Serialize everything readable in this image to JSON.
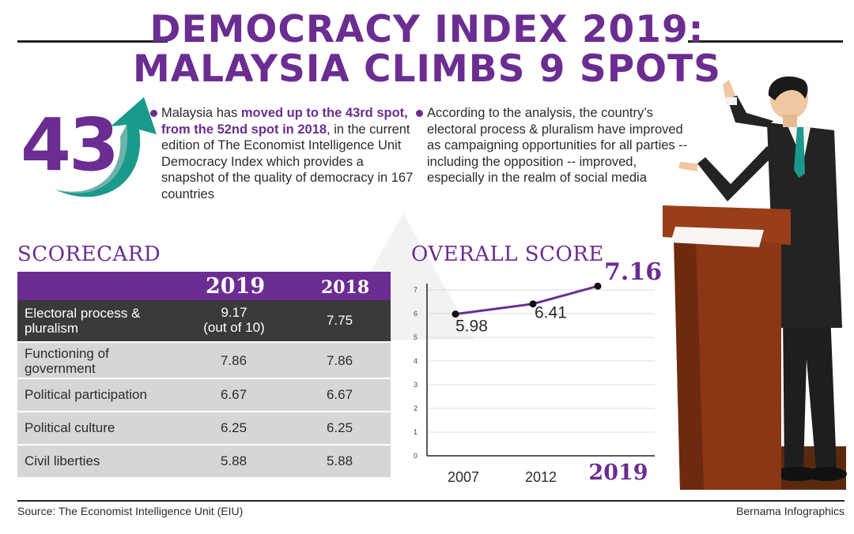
{
  "title": {
    "line1": "DEMOCRACY INDEX 2019:",
    "line2": "MALAYSIA CLIMBS 9 SPOTS"
  },
  "rank": "43",
  "bullet1": {
    "pre": "Malaysia has ",
    "highlight": "moved up to the 43rd spot, from the 52nd spot in 2018",
    "post": ", in the current edition of The Economist Intelligence Unit Democracy Index which provides a snapshot of the quality of democracy in 167 countries"
  },
  "bullet2": {
    "text": "According to the analysis, the country’s electoral process & pluralism have improved as campaigning opportunities for all parties -- including the opposition -- improved, especially in the realm of social media"
  },
  "scorecard": {
    "heading": "SCORECARD",
    "col_2019": "2019",
    "col_2018": "2018",
    "rows": [
      {
        "label": "Electoral process & pluralism",
        "v2019": "9.17",
        "note": "(out of 10)",
        "v2018": "7.75"
      },
      {
        "label": "Functioning of government",
        "v2019": "7.86",
        "v2018": "7.86"
      },
      {
        "label": "Political participation",
        "v2019": "6.67",
        "v2018": "6.67"
      },
      {
        "label": "Political culture",
        "v2019": "6.25",
        "v2018": "6.25"
      },
      {
        "label": "Civil liberties",
        "v2019": "5.88",
        "v2018": "5.88"
      }
    ]
  },
  "chart_data": {
    "type": "line",
    "title": "OVERALL SCORE",
    "categories": [
      "2007",
      "2012",
      "2019"
    ],
    "values": [
      5.98,
      6.41,
      7.16
    ],
    "data_labels": [
      "5.98",
      "6.41",
      "7.16"
    ],
    "ylim": [
      0,
      7
    ],
    "yticks": [
      "0",
      "1",
      "2",
      "3",
      "4",
      "5",
      "6",
      "7"
    ],
    "grid": true,
    "line_color": "#6b2d91",
    "highlight_category": "2019"
  },
  "footer": {
    "source": "Source:  The Economist Intelligence Unit (EIU)",
    "credit": "Bernama Infographics"
  },
  "colors": {
    "purple": "#6b2d91",
    "teal": "#1a9a8a",
    "dark_row": "#3a3a3a",
    "light_row": "#d6d6d6"
  }
}
